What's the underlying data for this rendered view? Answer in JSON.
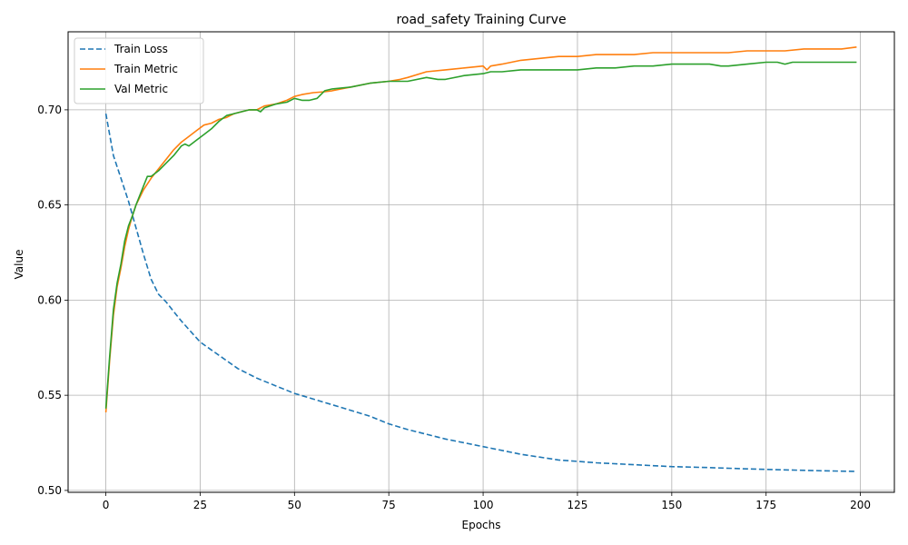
{
  "chart_data": {
    "type": "line",
    "title": "road_safety Training Curve",
    "xlabel": "Epochs",
    "ylabel": "Value",
    "xlim": [
      -10,
      209
    ],
    "ylim": [
      0.499,
      0.741
    ],
    "xticks": [
      0,
      25,
      50,
      75,
      100,
      125,
      150,
      175,
      200
    ],
    "yticks": [
      0.5,
      0.55,
      0.6,
      0.65,
      0.7
    ],
    "xtick_labels": [
      "0",
      "25",
      "50",
      "75",
      "100",
      "125",
      "150",
      "175",
      "200"
    ],
    "ytick_labels": [
      "0.50",
      "0.55",
      "0.60",
      "0.65",
      "0.70"
    ],
    "grid": true,
    "legend_position": "upper-left",
    "series": [
      {
        "name": "Train Loss",
        "color": "#1f77b4",
        "style": "dashed",
        "x": [
          0,
          2,
          4,
          6,
          8,
          10,
          12,
          14,
          16,
          18,
          20,
          25,
          30,
          35,
          40,
          45,
          50,
          60,
          70,
          75,
          80,
          90,
          100,
          110,
          120,
          130,
          140,
          150,
          160,
          170,
          180,
          190,
          199
        ],
        "values": [
          0.698,
          0.676,
          0.664,
          0.652,
          0.638,
          0.624,
          0.611,
          0.603,
          0.599,
          0.594,
          0.589,
          0.578,
          0.571,
          0.564,
          0.559,
          0.555,
          0.551,
          0.545,
          0.539,
          0.535,
          0.532,
          0.527,
          0.523,
          0.519,
          0.516,
          0.5145,
          0.5135,
          0.5125,
          0.512,
          0.5113,
          0.5108,
          0.5103,
          0.51
        ]
      },
      {
        "name": "Train Metric",
        "color": "#ff7f0e",
        "style": "solid",
        "x": [
          0,
          1,
          2,
          3,
          4,
          5,
          6,
          7,
          8,
          10,
          12,
          14,
          16,
          18,
          20,
          22,
          24,
          26,
          28,
          30,
          32,
          34,
          36,
          38,
          40,
          42,
          45,
          48,
          50,
          52,
          55,
          58,
          60,
          65,
          70,
          75,
          78,
          80,
          85,
          90,
          95,
          100,
          101,
          102,
          105,
          110,
          115,
          120,
          125,
          130,
          135,
          140,
          145,
          150,
          155,
          160,
          165,
          170,
          175,
          180,
          185,
          190,
          195,
          199
        ],
        "values": [
          0.541,
          0.568,
          0.592,
          0.607,
          0.617,
          0.628,
          0.637,
          0.644,
          0.65,
          0.658,
          0.664,
          0.669,
          0.674,
          0.679,
          0.683,
          0.686,
          0.689,
          0.692,
          0.693,
          0.695,
          0.696,
          0.698,
          0.699,
          0.7,
          0.7,
          0.702,
          0.703,
          0.705,
          0.707,
          0.708,
          0.709,
          0.7095,
          0.71,
          0.712,
          0.714,
          0.715,
          0.716,
          0.717,
          0.72,
          0.721,
          0.722,
          0.723,
          0.721,
          0.723,
          0.724,
          0.726,
          0.727,
          0.728,
          0.728,
          0.729,
          0.729,
          0.729,
          0.73,
          0.73,
          0.73,
          0.73,
          0.73,
          0.731,
          0.731,
          0.731,
          0.732,
          0.732,
          0.732,
          0.733
        ]
      },
      {
        "name": "Val Metric",
        "color": "#2ca02c",
        "style": "solid",
        "x": [
          0,
          1,
          2,
          3,
          4,
          5,
          6,
          7,
          8,
          10,
          11,
          12,
          14,
          16,
          18,
          20,
          21,
          22,
          24,
          26,
          28,
          30,
          32,
          34,
          36,
          38,
          40,
          41,
          42,
          45,
          48,
          50,
          52,
          54,
          56,
          58,
          60,
          65,
          70,
          75,
          78,
          80,
          85,
          88,
          90,
          95,
          100,
          102,
          105,
          110,
          115,
          120,
          125,
          130,
          135,
          140,
          145,
          150,
          155,
          160,
          163,
          165,
          170,
          175,
          178,
          180,
          182,
          185,
          190,
          195,
          199
        ],
        "values": [
          0.543,
          0.57,
          0.595,
          0.609,
          0.619,
          0.631,
          0.639,
          0.644,
          0.65,
          0.66,
          0.665,
          0.665,
          0.668,
          0.672,
          0.676,
          0.681,
          0.682,
          0.681,
          0.684,
          0.687,
          0.69,
          0.694,
          0.697,
          0.698,
          0.699,
          0.7,
          0.7,
          0.699,
          0.701,
          0.703,
          0.704,
          0.706,
          0.705,
          0.705,
          0.706,
          0.71,
          0.711,
          0.712,
          0.714,
          0.715,
          0.715,
          0.715,
          0.717,
          0.716,
          0.716,
          0.718,
          0.719,
          0.72,
          0.72,
          0.721,
          0.721,
          0.721,
          0.721,
          0.722,
          0.722,
          0.723,
          0.723,
          0.724,
          0.724,
          0.724,
          0.723,
          0.723,
          0.724,
          0.725,
          0.725,
          0.724,
          0.725,
          0.725,
          0.725,
          0.725,
          0.725
        ]
      }
    ]
  }
}
